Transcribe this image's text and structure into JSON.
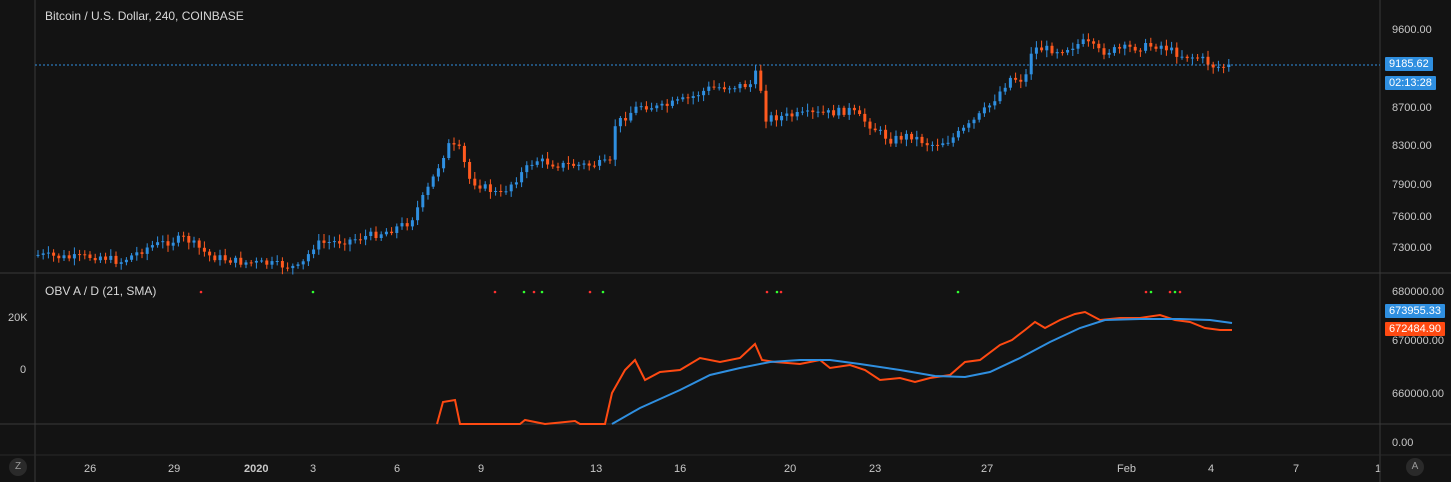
{
  "chart": {
    "title": "Bitcoin / U.S. Dollar, 240, COINBASE",
    "price_axis_ticks": [
      "9600.00",
      "8700.00",
      "8300.00",
      "7900.00",
      "7600.00",
      "7300.00"
    ],
    "last_price": "9185.62",
    "countdown": "02:13:28",
    "colors": {
      "up": "#2f8fe0",
      "down": "#ff5a1f",
      "line": "#2f8fe0",
      "background": "#131313"
    }
  },
  "indicator": {
    "title": "OBV A / D (21, SMA)",
    "left_ticks": [
      "20K",
      "0"
    ],
    "right_ticks": [
      "680000.00",
      "670000.00",
      "660000.00",
      "0.00"
    ],
    "value_blue": "673955.33",
    "value_orange": "672484.90"
  },
  "time_axis": {
    "labels": [
      "26",
      "29",
      "2020",
      "3",
      "6",
      "9",
      "13",
      "16",
      "20",
      "23",
      "27",
      "Feb",
      "4",
      "7",
      "1"
    ]
  },
  "controls": {
    "left_button": "Z",
    "right_button": "A"
  }
}
